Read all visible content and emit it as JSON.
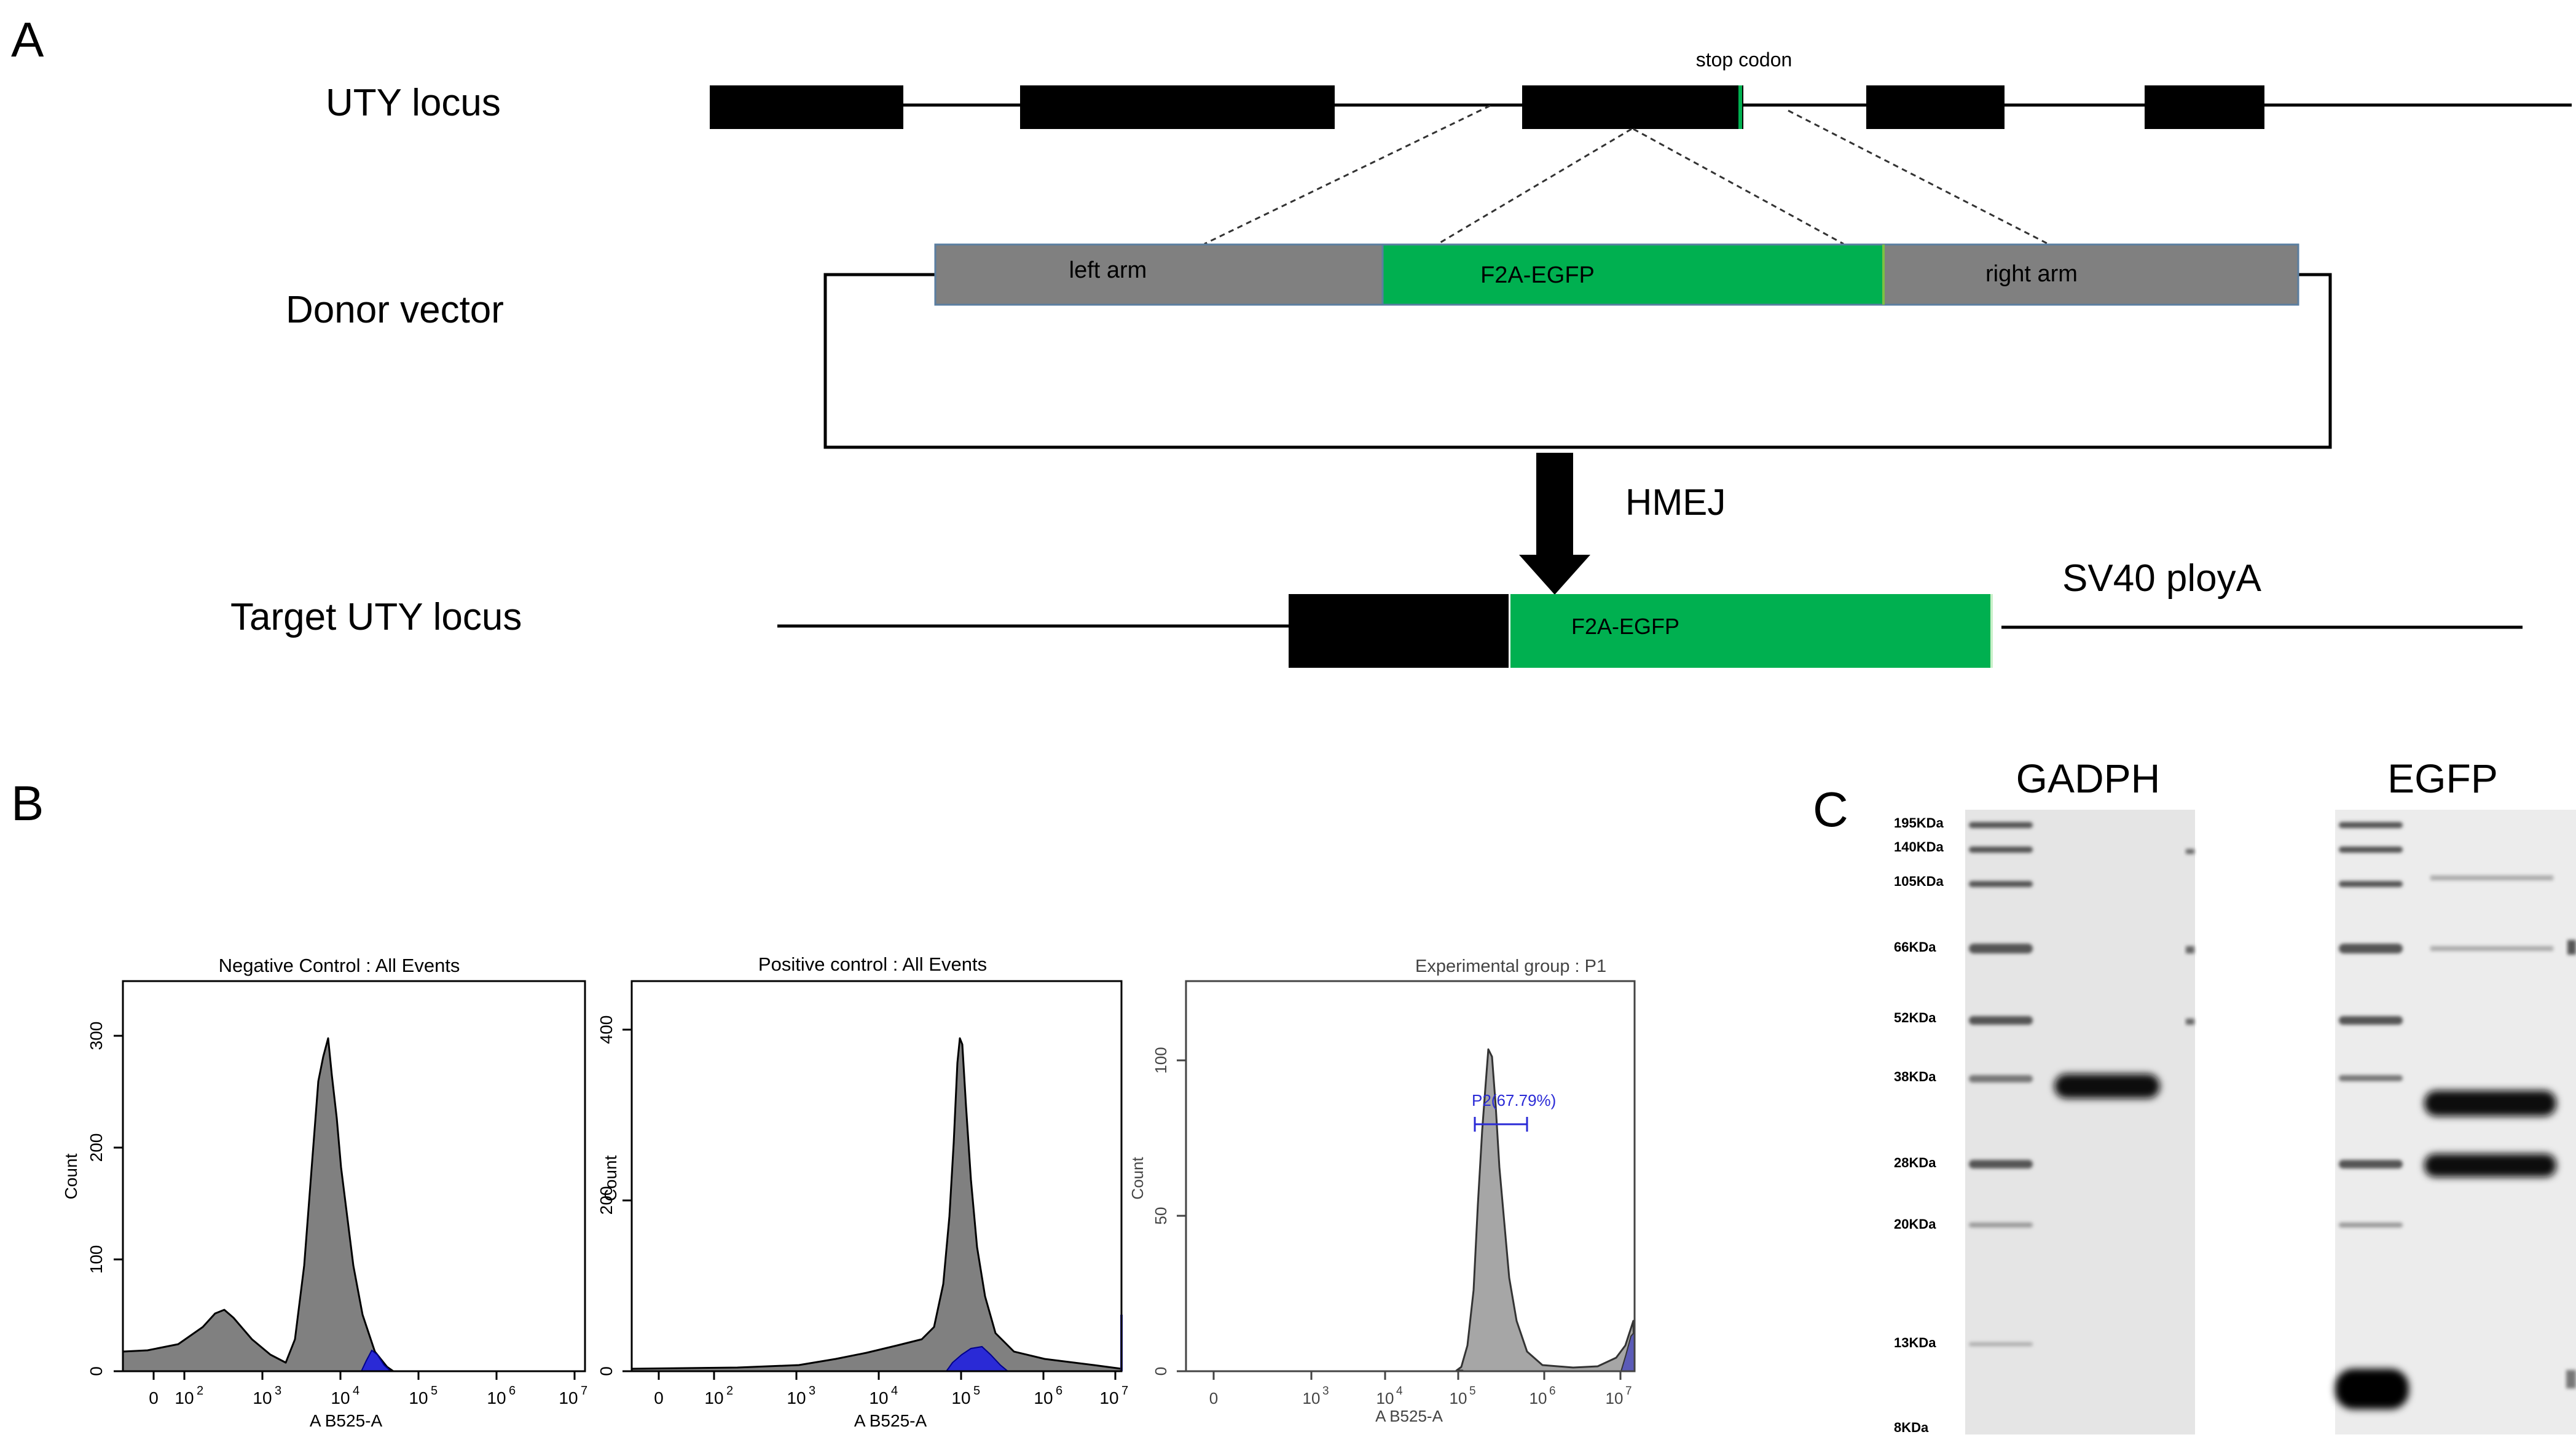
{
  "panels": {
    "a": {
      "label": "A",
      "rows": {
        "uty_locus": "UTY locus",
        "donor_vector": "Donor vector",
        "target_locus": "Target UTY locus"
      },
      "stop_codon": "stop codon",
      "donor_segments": [
        "left arm",
        "F2A-EGFP",
        "right arm"
      ],
      "method": "HMEJ",
      "target_insert": "F2A-EGFP",
      "polya": "SV40 ployA",
      "colors": {
        "exon": "#000000",
        "arm": "#808080",
        "egfp": "#00b050"
      }
    },
    "b": {
      "label": "B",
      "histograms": [
        {
          "title": "Negative Control : All Events",
          "xlabel": "A B525-A",
          "ylabel": "Count",
          "y_ticks": [
            "0",
            "100",
            "200",
            "300"
          ],
          "x_ticks": [
            "0",
            "10",
            "10",
            "10",
            "10",
            "10",
            "10"
          ],
          "x_exps": [
            "",
            "2",
            "3",
            "4",
            "5",
            "6",
            "7"
          ]
        },
        {
          "title": "Positive control : All Events",
          "xlabel": "A B525-A",
          "ylabel": "Count",
          "y_ticks": [
            "0",
            "200",
            "400"
          ],
          "x_ticks": [
            "0",
            "10",
            "10",
            "10",
            "10",
            "10",
            "10"
          ],
          "x_exps": [
            "",
            "2",
            "3",
            "4",
            "5",
            "6",
            "7"
          ]
        },
        {
          "title": "Experimental group : P1",
          "xlabel": "A B525-A",
          "ylabel": "Count",
          "y_ticks": [
            "0",
            "50",
            "100"
          ],
          "x_ticks": [
            "0",
            "10",
            "10",
            "10",
            "10",
            "10"
          ],
          "x_exps": [
            "",
            "3",
            "4",
            "5",
            "6",
            "7"
          ],
          "gate": "P2(67.79%)"
        }
      ]
    },
    "c": {
      "label": "C",
      "blots": [
        {
          "title": "GADPH"
        },
        {
          "title": "EGFP"
        }
      ],
      "markers": [
        "195KDa",
        "140KDa",
        "105KDa",
        "66KDa",
        "52KDa",
        "38KDa",
        "28KDa",
        "20KDa",
        "13KDa",
        "8KDa"
      ]
    }
  }
}
